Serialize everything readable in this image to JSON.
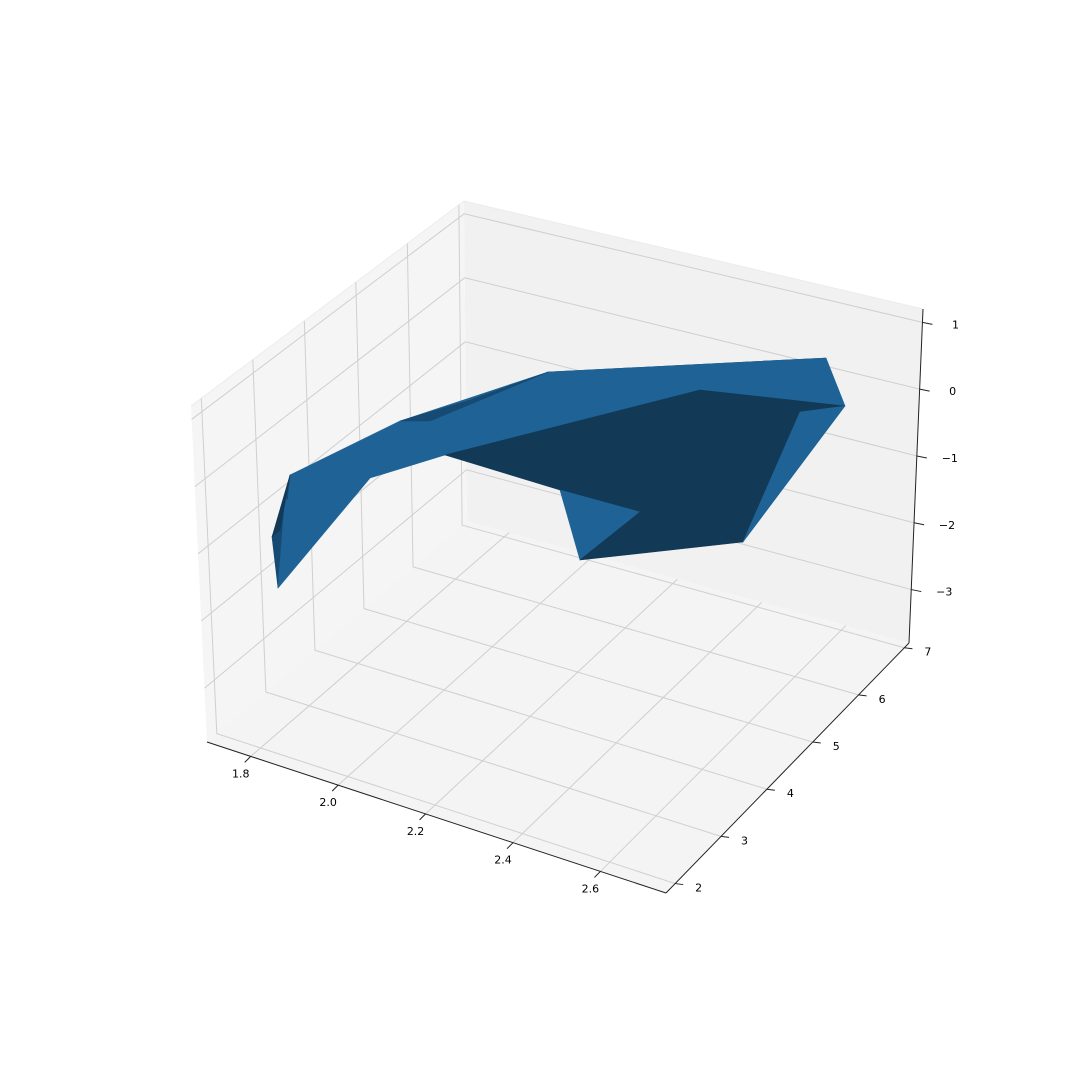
{
  "chart_data": {
    "type": "surface3d",
    "title": "",
    "xlabel": "",
    "ylabel": "",
    "zlabel": "",
    "xlim": [
      1.7,
      2.75
    ],
    "ylim": [
      1.8,
      7.1
    ],
    "zlim": [
      -3.8,
      1.2
    ],
    "x_ticks": [
      1.8,
      2.0,
      2.2,
      2.4,
      2.6
    ],
    "x_tick_labels": [
      "1.8",
      "2.0",
      "2.2",
      "2.4",
      "2.6"
    ],
    "y_ticks": [
      2,
      3,
      4,
      5,
      6,
      7
    ],
    "y_tick_labels": [
      "2",
      "3",
      "4",
      "5",
      "6",
      "7"
    ],
    "z_ticks": [
      1,
      0,
      -1,
      -2,
      -3
    ],
    "z_tick_labels": [
      "1",
      "0",
      "−1",
      "−2",
      "−3"
    ],
    "surface_color_light": "#1f6396",
    "surface_color_mid": "#164a72",
    "surface_color_dark": "#123956",
    "pane_colors": {
      "left": "#f5f5f5",
      "back": "#f1f1f1",
      "floor": "#f4f4f4"
    },
    "grid": true
  }
}
